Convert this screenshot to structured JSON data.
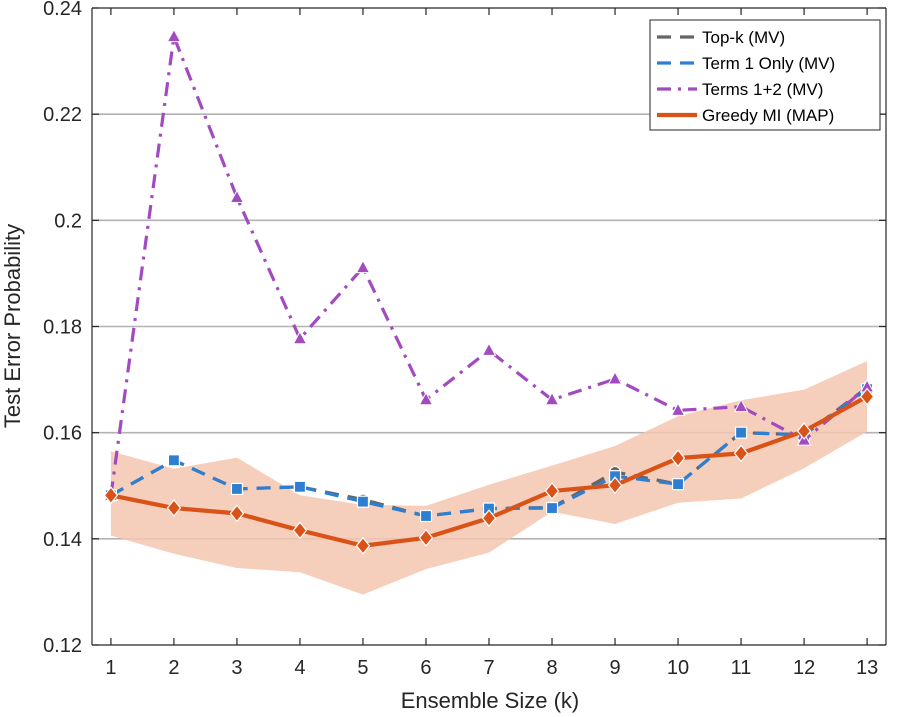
{
  "chart_data": {
    "type": "line",
    "title": "",
    "xlabel": "Ensemble Size (k)",
    "ylabel": "Test Error Probability",
    "x": [
      1,
      2,
      3,
      4,
      5,
      6,
      7,
      8,
      9,
      10,
      11,
      12,
      13
    ],
    "xlim": [
      0.7,
      13.3
    ],
    "ylim": [
      0.12,
      0.24
    ],
    "yticks": [
      0.12,
      0.14,
      0.16,
      0.18,
      0.2,
      0.22,
      0.24
    ],
    "ytick_labels": [
      "0.12",
      "0.14",
      "0.16",
      "0.18",
      "0.2",
      "0.22",
      "0.24"
    ],
    "xtick_labels": [
      "1",
      "2",
      "3",
      "4",
      "5",
      "6",
      "7",
      "8",
      "9",
      "10",
      "11",
      "12",
      "13"
    ],
    "grid": "horizontal",
    "legend_position": "top-right",
    "series": [
      {
        "name": "Top-k (MV)",
        "color": "#666666",
        "line_style": "dashed",
        "marker": "circle",
        "values": [
          0.1482,
          0.1548,
          0.1494,
          0.1498,
          0.1474,
          0.1443,
          0.1457,
          0.1459,
          0.1526,
          0.1503,
          0.16,
          0.1596,
          0.1685
        ]
      },
      {
        "name": "Term 1 Only (MV)",
        "color": "#2E7FD1",
        "line_style": "dashed",
        "marker": "square",
        "values": [
          0.1482,
          0.1548,
          0.1494,
          0.1498,
          0.147,
          0.1443,
          0.1457,
          0.1458,
          0.1518,
          0.1503,
          0.16,
          0.1596,
          0.1682
        ]
      },
      {
        "name": "Terms 1+2 (MV)",
        "color": "#A24BC0",
        "line_style": "dashdot",
        "marker": "triangle",
        "values": [
          0.1482,
          0.2346,
          0.2043,
          0.1777,
          0.1911,
          0.1662,
          0.1755,
          0.1662,
          0.1701,
          0.1642,
          0.1649,
          0.1586,
          0.1686
        ]
      },
      {
        "name": "Greedy MI (MAP)",
        "color": "#D95319",
        "line_style": "solid",
        "marker": "diamond",
        "values": [
          0.1482,
          0.1458,
          0.1448,
          0.1416,
          0.1387,
          0.1402,
          0.1439,
          0.149,
          0.1501,
          0.1552,
          0.1561,
          0.1603,
          0.1668
        ],
        "band_lower": [
          0.1406,
          0.1372,
          0.1345,
          0.1337,
          0.1295,
          0.1343,
          0.1374,
          0.1451,
          0.1428,
          0.1468,
          0.1476,
          0.1533,
          0.1602
        ],
        "band_upper": [
          0.1565,
          0.1532,
          0.1553,
          0.1482,
          0.1464,
          0.1462,
          0.1502,
          0.1538,
          0.1575,
          0.1631,
          0.1661,
          0.1681,
          0.1735
        ],
        "band_color": "#F5C6B0"
      }
    ]
  }
}
